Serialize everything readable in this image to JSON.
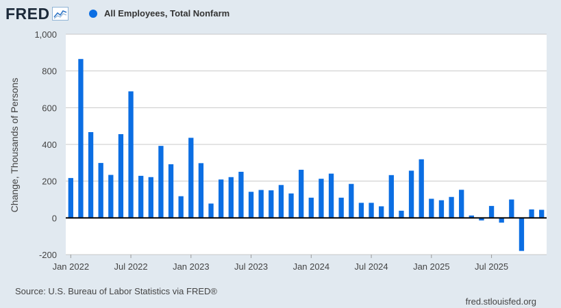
{
  "header": {
    "logo_text": "FRED",
    "logo_icon": "fred-trend-line-icon",
    "legend_label": "All Employees, Total Nonfarm"
  },
  "footer": {
    "source": "Source: U.S. Bureau of Labor Statistics via FRED®",
    "site": "fred.stlouisfed.org"
  },
  "colors": {
    "series": "#0b6ee3",
    "background": "#e1e9f0",
    "plot_background": "#ffffff",
    "grid": "#c8c8c8",
    "zero_line": "#000000"
  },
  "chart_data": {
    "type": "bar",
    "title": "",
    "xlabel": "",
    "ylabel": "Change, Thousands of Persons",
    "ylim": [
      -200,
      1000
    ],
    "yticks": [
      -200,
      0,
      200,
      400,
      600,
      800,
      1000
    ],
    "ytick_labels": [
      "-200",
      "0",
      "200",
      "400",
      "600",
      "800",
      "1,000"
    ],
    "xtick_labels": [
      "Jan 2022",
      "Jul 2022",
      "Jan 2023",
      "Jul 2023",
      "Jan 2024",
      "Jul 2024",
      "Jan 2025",
      "Jul 2025"
    ],
    "xtick_index": [
      0,
      6,
      12,
      18,
      24,
      30,
      36,
      42
    ],
    "grid": true,
    "legend_position": "top-left",
    "categories": [
      "2022-01",
      "2022-02",
      "2022-03",
      "2022-04",
      "2022-05",
      "2022-06",
      "2022-07",
      "2022-08",
      "2022-09",
      "2022-10",
      "2022-11",
      "2022-12",
      "2023-01",
      "2023-02",
      "2023-03",
      "2023-04",
      "2023-05",
      "2023-06",
      "2023-07",
      "2023-08",
      "2023-09",
      "2023-10",
      "2023-11",
      "2023-12",
      "2024-01",
      "2024-02",
      "2024-03",
      "2024-04",
      "2024-05",
      "2024-06",
      "2024-07",
      "2024-08",
      "2024-09",
      "2024-10",
      "2024-11",
      "2024-12",
      "2025-01",
      "2025-02",
      "2025-03",
      "2025-04",
      "2025-05",
      "2025-06",
      "2025-07",
      "2025-08",
      "2025-09",
      "2025-10",
      "2025-11",
      "2025-12"
    ],
    "series": [
      {
        "name": "All Employees, Total Nonfarm",
        "color": "#0b6ee3",
        "values": [
          217,
          865,
          467,
          299,
          234,
          456,
          689,
          229,
          222,
          392,
          292,
          118,
          436,
          298,
          78,
          209,
          222,
          251,
          142,
          152,
          150,
          179,
          133,
          262,
          110,
          213,
          241,
          110,
          185,
          82,
          82,
          63,
          233,
          39,
          257,
          319,
          104,
          96,
          114,
          153,
          13,
          -14,
          65,
          -26,
          100,
          -180,
          46,
          44
        ]
      }
    ]
  }
}
